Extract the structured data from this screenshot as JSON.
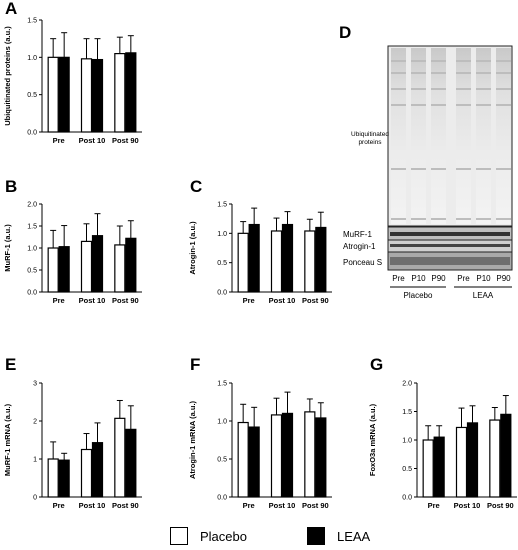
{
  "legend": {
    "placebo": "Placebo",
    "leaa": "LEAA"
  },
  "blot": {
    "letter": "D",
    "ubiquitinated_label": "Ubiquitinated\nproteins",
    "rows": [
      "MuRF-1",
      "Atrogin-1",
      "Ponceau S"
    ],
    "lane_labels": [
      "Pre",
      "P10",
      "P90",
      "Pre",
      "P10",
      "P90"
    ],
    "groups": [
      "Placebo",
      "LEAA"
    ]
  },
  "chart_data": [
    {
      "id": "A",
      "type": "bar",
      "letter": "A",
      "categories": [
        "Pre",
        "Post 10",
        "Post 90"
      ],
      "ylabel": "Ubiquitinated proteins (a.u.)",
      "ylim": [
        0.0,
        1.5
      ],
      "yticks": [
        "0.0",
        "0.5",
        "1.0",
        "1.5"
      ],
      "series": [
        {
          "name": "Placebo",
          "fill": "#ffffff",
          "values": [
            1.0,
            0.98,
            1.05
          ],
          "errors": [
            0.25,
            0.27,
            0.22
          ]
        },
        {
          "name": "LEAA",
          "fill": "#000000",
          "values": [
            1.0,
            0.97,
            1.06
          ],
          "errors": [
            0.33,
            0.28,
            0.23
          ]
        }
      ]
    },
    {
      "id": "B",
      "type": "bar",
      "letter": "B",
      "categories": [
        "Pre",
        "Post 10",
        "Post 90"
      ],
      "ylabel": "MuRF-1 (a.u.)",
      "ylim": [
        0.0,
        2.0
      ],
      "yticks": [
        "0.0",
        "0.5",
        "1.0",
        "1.5",
        "2.0"
      ],
      "series": [
        {
          "name": "Placebo",
          "fill": "#ffffff",
          "values": [
            1.0,
            1.15,
            1.07
          ],
          "errors": [
            0.4,
            0.4,
            0.43
          ]
        },
        {
          "name": "LEAA",
          "fill": "#000000",
          "values": [
            1.03,
            1.28,
            1.22
          ],
          "errors": [
            0.48,
            0.5,
            0.4
          ]
        }
      ]
    },
    {
      "id": "C",
      "type": "bar",
      "letter": "C",
      "categories": [
        "Pre",
        "Post 10",
        "Post 90"
      ],
      "ylabel": "Atrogin-1 (a.u.)",
      "ylim": [
        0.0,
        1.5
      ],
      "yticks": [
        "0.0",
        "0.5",
        "1.0",
        "1.5"
      ],
      "series": [
        {
          "name": "Placebo",
          "fill": "#ffffff",
          "values": [
            1.0,
            1.04,
            1.04
          ],
          "errors": [
            0.2,
            0.22,
            0.2
          ]
        },
        {
          "name": "LEAA",
          "fill": "#000000",
          "values": [
            1.15,
            1.15,
            1.1
          ],
          "errors": [
            0.28,
            0.22,
            0.26
          ]
        }
      ]
    },
    {
      "id": "E",
      "type": "bar",
      "letter": "E",
      "categories": [
        "Pre",
        "Post 10",
        "Post 90"
      ],
      "ylabel": "MuRF-1 mRNA (a.u.)",
      "ylim": [
        0,
        3
      ],
      "yticks": [
        "0",
        "1",
        "2",
        "3"
      ],
      "series": [
        {
          "name": "Placebo",
          "fill": "#ffffff",
          "values": [
            1.0,
            1.25,
            2.07
          ],
          "errors": [
            0.45,
            0.42,
            0.47
          ]
        },
        {
          "name": "LEAA",
          "fill": "#000000",
          "values": [
            0.97,
            1.43,
            1.78
          ],
          "errors": [
            0.18,
            0.52,
            0.62
          ]
        }
      ]
    },
    {
      "id": "F",
      "type": "bar",
      "letter": "F",
      "categories": [
        "Pre",
        "Post 10",
        "Post 90"
      ],
      "ylabel": "Atrogin-1 mRNA (a.u.)",
      "ylim": [
        0.0,
        1.5
      ],
      "yticks": [
        "0.0",
        "0.5",
        "1.0",
        "1.5"
      ],
      "series": [
        {
          "name": "Placebo",
          "fill": "#ffffff",
          "values": [
            0.98,
            1.08,
            1.12
          ],
          "errors": [
            0.24,
            0.22,
            0.17
          ]
        },
        {
          "name": "LEAA",
          "fill": "#000000",
          "values": [
            0.92,
            1.1,
            1.04
          ],
          "errors": [
            0.26,
            0.28,
            0.2
          ]
        }
      ]
    },
    {
      "id": "G",
      "type": "bar",
      "letter": "G",
      "categories": [
        "Pre",
        "Post 10",
        "Post 90"
      ],
      "ylabel": "FoxO3a mRNA (a.u.)",
      "ylim": [
        0.0,
        2.0
      ],
      "yticks": [
        "0.0",
        "0.5",
        "1.0",
        "1.5",
        "2.0"
      ],
      "series": [
        {
          "name": "Placebo",
          "fill": "#ffffff",
          "values": [
            1.0,
            1.22,
            1.35
          ],
          "errors": [
            0.25,
            0.34,
            0.22
          ]
        },
        {
          "name": "LEAA",
          "fill": "#000000",
          "values": [
            1.05,
            1.3,
            1.45
          ],
          "errors": [
            0.2,
            0.3,
            0.33
          ]
        }
      ]
    }
  ]
}
